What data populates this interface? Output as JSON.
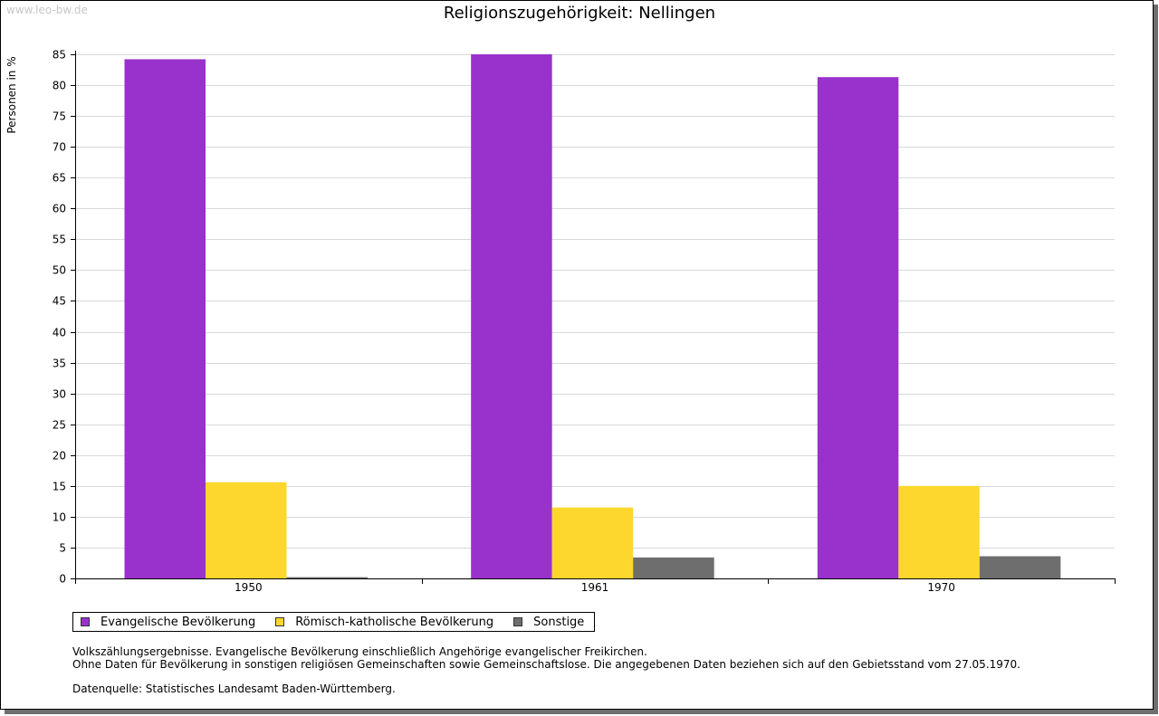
{
  "watermark": "www.leo-bw.de",
  "chart_data": {
    "type": "bar",
    "title": "Religionszugehörigkeit: Nellingen",
    "xlabel": "",
    "ylabel": "Personen in %",
    "ylim": [
      0,
      85
    ],
    "yticks": [
      0,
      5,
      10,
      15,
      20,
      25,
      30,
      35,
      40,
      45,
      50,
      55,
      60,
      65,
      70,
      75,
      80,
      85
    ],
    "grid": true,
    "legend_position": "bottom-left",
    "categories": [
      "1950",
      "1961",
      "1970"
    ],
    "series": [
      {
        "name": "Evangelische Bevölkerung",
        "color": "#9932cc",
        "values": [
          84.2,
          85.0,
          81.3
        ]
      },
      {
        "name": "Römisch-katholische Bevölkerung",
        "color": "#fdd72e",
        "values": [
          15.6,
          11.5,
          15.0
        ]
      },
      {
        "name": "Sonstige",
        "color": "#6e6e6e",
        "values": [
          0.2,
          3.4,
          3.6
        ]
      }
    ]
  },
  "notes": {
    "line1": "Volkszählungsergebnisse. Evangelische Bevölkerung einschließlich Angehörige evangelischer Freikirchen.",
    "line2": "Ohne Daten für Bevölkerung in sonstigen religiösen Gemeinschaften sowie Gemeinschaftslose. Die angegebenen Daten beziehen sich auf den Gebietsstand vom 27.05.1970.",
    "source": "Datenquelle: Statistisches Landesamt Baden-Württemberg."
  }
}
